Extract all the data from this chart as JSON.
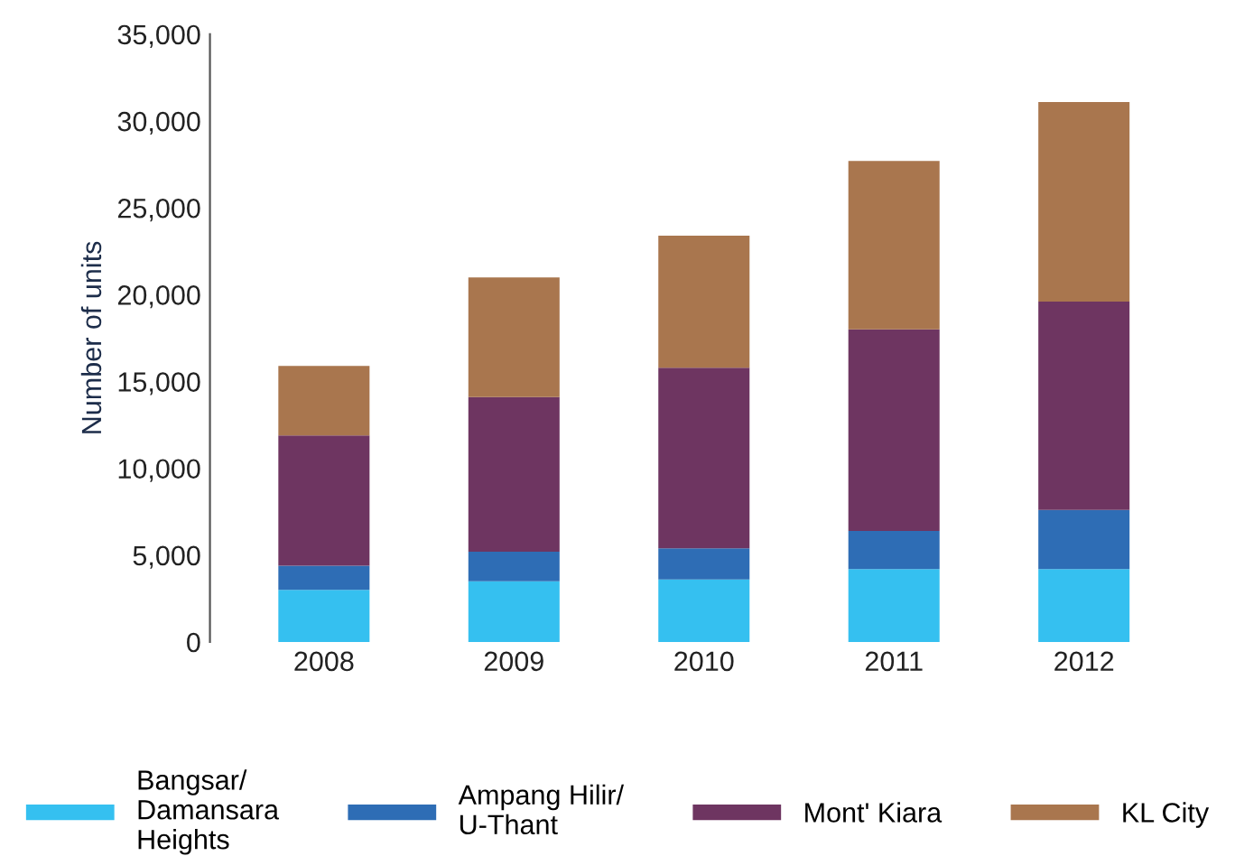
{
  "chart_data": {
    "type": "bar",
    "stacked": true,
    "ylabel": "Number of units",
    "categories": [
      "2008",
      "2009",
      "2010",
      "2011",
      "2012"
    ],
    "series": [
      {
        "name": "Bangsar/\nDamansara\nHeights",
        "color": "#35c0f0",
        "values": [
          3000,
          3500,
          3600,
          4200,
          4200
        ]
      },
      {
        "name": "Ampang Hilir/\nU-Thant",
        "color": "#2e6db5",
        "values": [
          1400,
          1700,
          1800,
          2200,
          3400
        ]
      },
      {
        "name": "Mont' Kiara",
        "color": "#6e3561",
        "values": [
          7500,
          8900,
          10400,
          11600,
          12000
        ]
      },
      {
        "name": "KL City",
        "color": "#a9764e",
        "values": [
          4000,
          6900,
          7600,
          9700,
          11500
        ]
      }
    ],
    "ylim": [
      0,
      35000
    ],
    "yticks": [
      {
        "value": 0,
        "label": "0"
      },
      {
        "value": 5000,
        "label": "5,000"
      },
      {
        "value": 10000,
        "label": "10,000"
      },
      {
        "value": 15000,
        "label": "15,000"
      },
      {
        "value": 20000,
        "label": "20,000"
      },
      {
        "value": 25000,
        "label": "25,000"
      },
      {
        "value": 30000,
        "label": "30,000"
      },
      {
        "value": 35000,
        "label": "35,000"
      }
    ],
    "grid": false,
    "legend": "bottom"
  }
}
